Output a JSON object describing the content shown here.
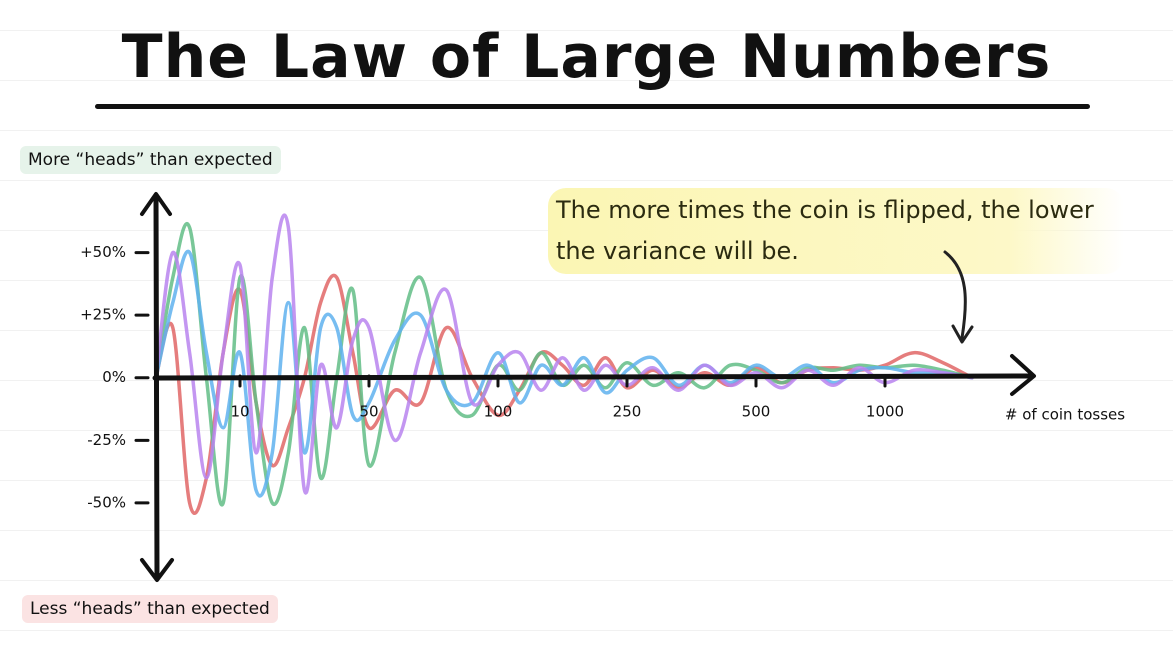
{
  "chart_data": {
    "type": "line",
    "title": "The Law of Large Numbers",
    "y_top_label": "More “heads” than expected",
    "y_bottom_label": "Less “heads” than expected",
    "x_label": "# of coin tosses",
    "annotation": "The more times the coin is flipped, the lower the variance will be.",
    "x": [
      0,
      2,
      4,
      6,
      8,
      10,
      15,
      20,
      25,
      30,
      35,
      40,
      45,
      50,
      60,
      70,
      80,
      90,
      100,
      125,
      150,
      175,
      200,
      225,
      250,
      300,
      350,
      400,
      450,
      500,
      600,
      700,
      800,
      900,
      1000,
      1100,
      1200,
      1300
    ],
    "series": [
      {
        "color": "#e06666",
        "values": [
          0,
          20,
          -50,
          -40,
          10,
          35,
          -10,
          -35,
          -20,
          0,
          30,
          40,
          10,
          -20,
          -5,
          -10,
          20,
          0,
          -15,
          -5,
          10,
          5,
          -3,
          8,
          -4,
          3,
          -4,
          2,
          -3,
          4,
          -2,
          3,
          4,
          3,
          5,
          10,
          6,
          0
        ]
      },
      {
        "color": "#62bd86",
        "values": [
          0,
          40,
          60,
          0,
          -50,
          40,
          -10,
          -50,
          -30,
          20,
          -40,
          0,
          35,
          -35,
          10,
          40,
          -5,
          -15,
          5,
          -5,
          10,
          -3,
          5,
          -4,
          6,
          -3,
          2,
          -4,
          5,
          3,
          -2,
          4,
          3,
          5,
          4,
          5,
          3,
          0
        ]
      },
      {
        "color": "#5fb2ee",
        "values": [
          0,
          30,
          50,
          10,
          -20,
          10,
          -45,
          -30,
          30,
          -30,
          20,
          20,
          -15,
          -10,
          15,
          25,
          -5,
          -10,
          10,
          -10,
          5,
          -3,
          8,
          -6,
          3,
          8,
          -3,
          5,
          -2,
          5,
          0,
          5,
          -2,
          3,
          4,
          2,
          2,
          0
        ]
      },
      {
        "color": "#b884ee",
        "values": [
          0,
          50,
          10,
          -40,
          10,
          45,
          -30,
          40,
          60,
          -45,
          5,
          -20,
          15,
          20,
          -25,
          10,
          35,
          -10,
          5,
          10,
          -5,
          8,
          -5,
          5,
          -3,
          4,
          -5,
          5,
          -3,
          2,
          -4,
          3,
          -3,
          4,
          -2,
          3,
          2,
          0
        ]
      }
    ],
    "xlim": [
      0,
      1500
    ],
    "xticks": [
      10,
      50,
      100,
      250,
      500,
      1000
    ],
    "ylim": [
      -80,
      71
    ],
    "yticks": [
      {
        "value": 50,
        "label": "+50%"
      },
      {
        "value": 25,
        "label": "+25%"
      },
      {
        "value": 0,
        "label": "0%"
      },
      {
        "value": -25,
        "label": "-25%"
      },
      {
        "value": -50,
        "label": "-50%"
      }
    ],
    "grid": false
  }
}
